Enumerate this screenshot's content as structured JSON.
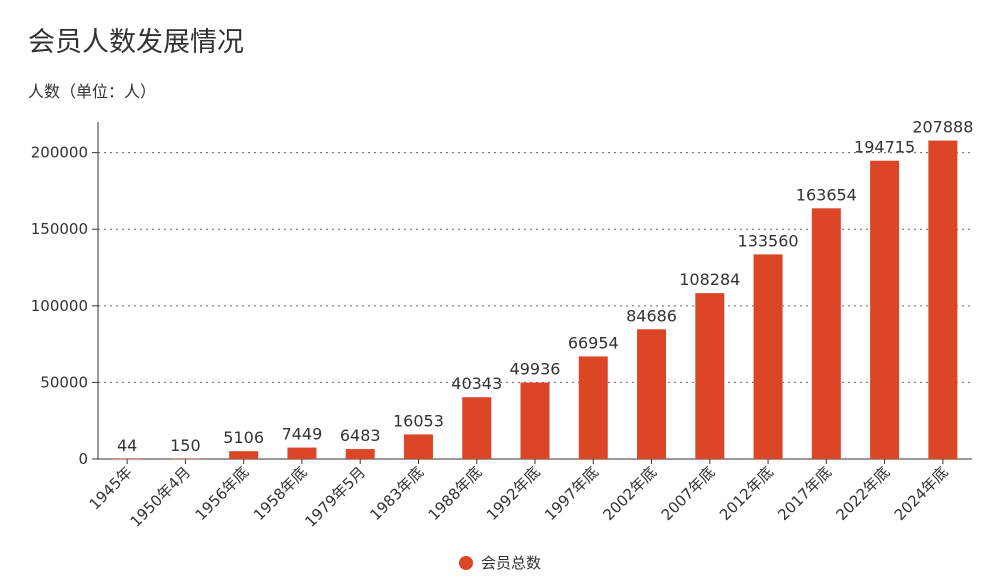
{
  "chart_data": {
    "type": "bar",
    "title": "会员人数发展情况",
    "ylabel": "人数（单位：人）",
    "xlabel": "",
    "categories": [
      "1945年",
      "1950年4月",
      "1956年底",
      "1958年底",
      "1979年5月",
      "1983年底",
      "1988年底",
      "1992年底",
      "1997年底",
      "2002年底",
      "2007年底",
      "2012年底",
      "2017年底",
      "2022年底",
      "2024年底"
    ],
    "series": [
      {
        "name": "会员总数",
        "values": [
          44,
          150,
          5106,
          7449,
          6483,
          16053,
          40343,
          49936,
          66954,
          84686,
          108284,
          133560,
          163654,
          194715,
          207888
        ]
      }
    ],
    "ylim": [
      0,
      220000
    ],
    "yticks": [
      0,
      50000,
      100000,
      150000,
      200000
    ],
    "grid": "horizontal-dotted",
    "legend_position": "bottom-center",
    "bar_color": "#dc4526"
  }
}
